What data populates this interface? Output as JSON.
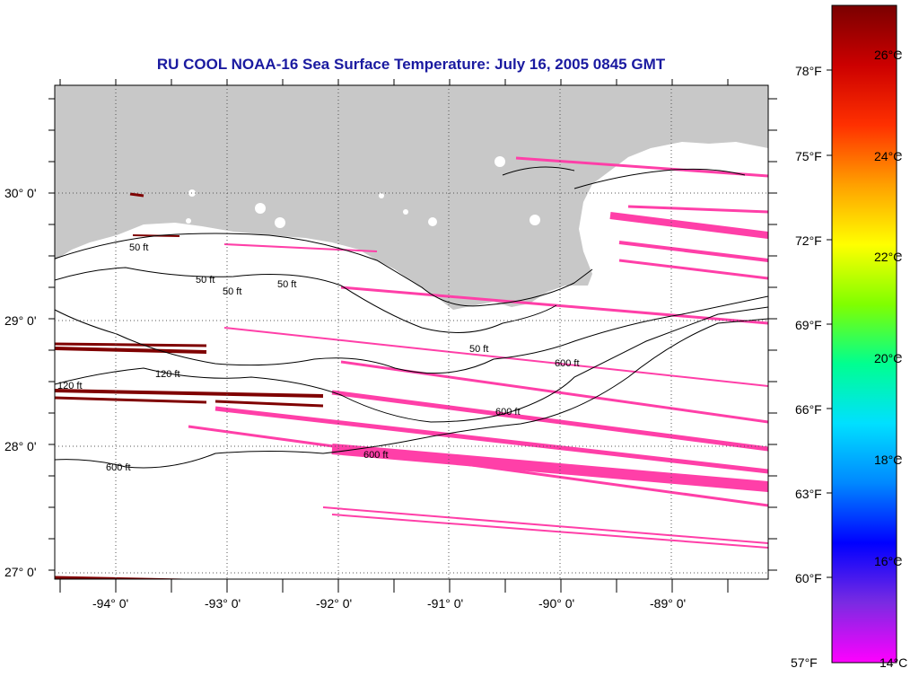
{
  "title": "RU COOL  NOAA-16  Sea Surface Temperature:  July 16, 2005 0845 GMT",
  "colors": {
    "title": "#1a1aa0",
    "land": "#c8c8c8",
    "sea": "#ffffff",
    "cold_swath": "#ff3fa8",
    "warm_swath": "#7f0000"
  },
  "lat_labels": [
    "30° 0'",
    "29° 0'",
    "28° 0'",
    "27° 0'"
  ],
  "lon_labels": [
    "-94° 0'",
    "-93° 0'",
    "-92° 0'",
    "-91° 0'",
    "-90° 0'",
    "-89° 0'"
  ],
  "contour_labels": [
    "50 ft",
    "50 ft",
    "50 ft",
    "50 ft",
    "120 ft",
    "120 ft",
    "600 ft",
    "600 ft",
    "600 ft",
    "600 ft",
    "50 ft"
  ],
  "colorbar": {
    "f_labels": [
      "78°F",
      "75°F",
      "72°F",
      "69°F",
      "66°F",
      "63°F",
      "60°F",
      "57°F"
    ],
    "c_labels": [
      "26°C",
      "24°C",
      "22°C",
      "20°C",
      "18°C",
      "16°C",
      "14°C"
    ],
    "stops": [
      "#ff00ff",
      "#7a2be2",
      "#0000ff",
      "#0088ff",
      "#00e0ff",
      "#00ff90",
      "#80ff00",
      "#ffff00",
      "#ffa000",
      "#ff3000",
      "#cc0000",
      "#7a0000"
    ]
  }
}
